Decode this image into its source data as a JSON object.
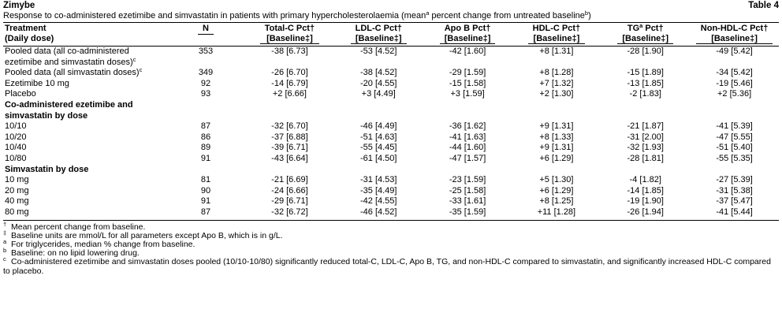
{
  "header": {
    "title": "Zimybe",
    "table_label": "Table 4"
  },
  "caption": [
    "Response to co-administered ezetimibe and simvastatin in patients with primary hypercholesterolaemia (mean",
    "a",
    " percent change from untreated baseline",
    "b",
    ")"
  ],
  "columns": [
    {
      "name": "Treatment",
      "sub": "(Daily dose)"
    },
    {
      "name": "N"
    },
    {
      "name": "Total-C Pct†",
      "sub": "[Baseline‡]"
    },
    {
      "name": "LDL-C Pct†",
      "sub": "[Baseline‡]"
    },
    {
      "name": "Apo B Pct†",
      "sub": "[Baseline‡]"
    },
    {
      "name": "HDL-C Pct†",
      "sub": "[Baseline‡]"
    },
    {
      "name": "TG",
      "sup": "a",
      "name_rest": " Pct†",
      "sub": "[Baseline‡]"
    },
    {
      "name": "Non-HDL-C Pct†",
      "sub": "[Baseline‡]"
    }
  ],
  "rows": [
    {
      "label": "Pooled data (all co-administered ezetimibe and simvastatin doses)",
      "label_sup": "c",
      "n": 353,
      "cells": [
        "-38 [6.73]",
        "-53 [4.52]",
        "-42 [1.60]",
        "+8 [1.31]",
        "-28 [1.90]",
        "-49 [5.42]"
      ]
    },
    {
      "label": "Pooled data (all simvastatin doses)",
      "label_sup": "c",
      "n": 349,
      "cells": [
        "-26 [6.70]",
        "-38 [4.52]",
        "-29 [1.59]",
        "+8 [1.28]",
        "-15 [1.89]",
        "-34 [5.42]"
      ]
    },
    {
      "label": "Ezetimibe 10 mg",
      "n": 92,
      "cells": [
        "-14 [6.79]",
        "-20 [4.55]",
        "-15 [1.58]",
        "+7 [1.32]",
        "-13 [1.85]",
        "-19 [5.46]"
      ]
    },
    {
      "label": "Placebo",
      "n": 93,
      "cells": [
        "+2 [6.66]",
        "+3 [4.49]",
        "+3 [1.59]",
        "+2 [1.30]",
        "-2 [1.83]",
        "+2 [5.36]"
      ]
    },
    {
      "section": "Co-administered ezetimibe and simvastatin by dose"
    },
    {
      "label": "10/10",
      "n": 87,
      "cells": [
        "-32 [6.70]",
        "-46 [4.49]",
        "-36 [1.62]",
        "+9 [1.31]",
        "-21 [1.87]",
        "-41 [5.39]"
      ]
    },
    {
      "label": "10/20",
      "n": 86,
      "cells": [
        "-37 [6.88]",
        "-51 [4.63]",
        "-41 [1.63]",
        "+8 [1.33]",
        "-31 [2.00]",
        "-47 [5.55]"
      ]
    },
    {
      "label": "10/40",
      "n": 89,
      "cells": [
        "-39 [6.71]",
        "-55 [4.45]",
        "-44 [1.60]",
        "+9 [1.31]",
        "-32 [1.93]",
        "-51 [5.40]"
      ]
    },
    {
      "label": "10/80",
      "n": 91,
      "cells": [
        "-43 [6.64]",
        "-61 [4.50]",
        "-47 [1.57]",
        "+6 [1.29]",
        "-28 [1.81]",
        "-55 [5.35]"
      ]
    },
    {
      "section": "Simvastatin by dose"
    },
    {
      "label": "10 mg",
      "n": 81,
      "cells": [
        "-21 [6.69]",
        "-31 [4.53]",
        "-23 [1.59]",
        "+5 [1.30]",
        "-4 [1.82]",
        "-27 [5.39]"
      ]
    },
    {
      "label": "20 mg",
      "n": 90,
      "cells": [
        "-24 [6.66]",
        "-35 [4.49]",
        "-25 [1.58]",
        "+6 [1.29]",
        "-14 [1.85]",
        "-31 [5.38]"
      ]
    },
    {
      "label": "40 mg",
      "n": 91,
      "cells": [
        "-29 [6.71]",
        "-42 [4.55]",
        "-33 [1.61]",
        "+8 [1.25]",
        "-19 [1.90]",
        "-37 [5.47]"
      ]
    },
    {
      "label": "80 mg",
      "n": 87,
      "cells": [
        "-32 [6.72]",
        "-46 [4.52]",
        "-35 [1.59]",
        "+11 [1.28]",
        "-26 [1.94]",
        "-41 [5.44]"
      ]
    }
  ],
  "footnotes": [
    {
      "mark": "†",
      "text": "Mean percent change from baseline."
    },
    {
      "mark": "‡",
      "text": "Baseline units are mmol/L for all parameters except Apo B, which is in g/L."
    },
    {
      "mark": "a",
      "text": "For triglycerides, median % change from baseline."
    },
    {
      "mark": "b",
      "text": "Baseline: on no lipid lowering drug."
    },
    {
      "mark": "c",
      "text": "Co-administered ezetimibe and simvastatin doses pooled (10/10-10/80) significantly reduced total-C, LDL-C, Apo B, TG, and non-HDL-C compared to simvastatin, and significantly increased HDL-C compared to placebo."
    }
  ]
}
